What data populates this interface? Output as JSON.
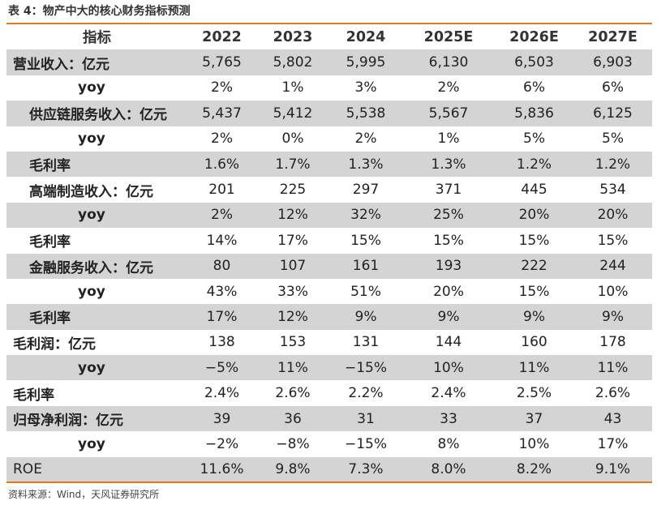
{
  "caption": "表 4：物产中大的核心财务指标预测",
  "header": {
    "label": "指标",
    "years": [
      "2022",
      "2023",
      "2024",
      "2025E",
      "2026E",
      "2027E"
    ]
  },
  "rows": [
    {
      "label": "营业收入：亿元",
      "values": [
        "5,765",
        "5,802",
        "5,995",
        "6,130",
        "6,503",
        "6,903"
      ]
    },
    {
      "label": "yoy",
      "values": [
        "2%",
        "1%",
        "3%",
        "2%",
        "6%",
        "6%"
      ]
    },
    {
      "label": "供应链服务收入：亿元",
      "values": [
        "5,437",
        "5,412",
        "5,538",
        "5,567",
        "5,836",
        "6,125"
      ]
    },
    {
      "label": "yoy",
      "values": [
        "2%",
        "0%",
        "2%",
        "1%",
        "5%",
        "5%"
      ]
    },
    {
      "label": "毛利率",
      "values": [
        "1.6%",
        "1.7%",
        "1.3%",
        "1.3%",
        "1.2%",
        "1.2%"
      ]
    },
    {
      "label": "高端制造收入：亿元",
      "values": [
        "201",
        "225",
        "297",
        "371",
        "445",
        "534"
      ]
    },
    {
      "label": "yoy",
      "values": [
        "2%",
        "12%",
        "32%",
        "25%",
        "20%",
        "20%"
      ]
    },
    {
      "label": "毛利率",
      "values": [
        "14%",
        "17%",
        "15%",
        "15%",
        "15%",
        "15%"
      ]
    },
    {
      "label": "金融服务收入：亿元",
      "values": [
        "80",
        "107",
        "161",
        "193",
        "222",
        "244"
      ]
    },
    {
      "label": "yoy",
      "values": [
        "43%",
        "33%",
        "51%",
        "20%",
        "15%",
        "10%"
      ]
    },
    {
      "label": "毛利率",
      "values": [
        "17%",
        "12%",
        "9%",
        "9%",
        "9%",
        "9%"
      ]
    },
    {
      "label": "毛利润：亿元",
      "values": [
        "138",
        "153",
        "131",
        "144",
        "160",
        "178"
      ]
    },
    {
      "label": "yoy",
      "values": [
        "−5%",
        "11%",
        "−15%",
        "10%",
        "11%",
        "11%"
      ]
    },
    {
      "label": "毛利率",
      "values": [
        "2.4%",
        "2.6%",
        "2.2%",
        "2.4%",
        "2.5%",
        "2.6%"
      ]
    },
    {
      "label": "归母净利润：亿元",
      "values": [
        "39",
        "36",
        "31",
        "33",
        "37",
        "43"
      ]
    },
    {
      "label": "yoy",
      "values": [
        "−2%",
        "−8%",
        "−15%",
        "8%",
        "10%",
        "17%"
      ]
    },
    {
      "label": "ROE",
      "values": [
        "11.6%",
        "9.8%",
        "7.3%",
        "8.0%",
        "8.2%",
        "9.1%"
      ]
    }
  ],
  "source": "资料来源：Wind，天风证券研究所",
  "colors": {
    "accent": "#e07a1f",
    "shade": "#d4d4d4"
  }
}
